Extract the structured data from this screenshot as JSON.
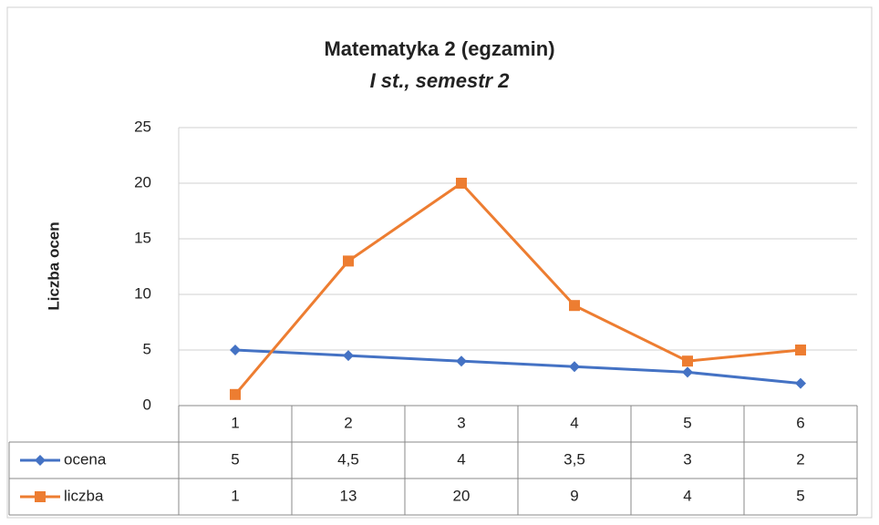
{
  "chart_data": {
    "type": "line",
    "title": "Matematyka 2 (egzamin)",
    "subtitle": "I st., semestr 2",
    "y_label": "Liczba ocen",
    "categories": [
      "1",
      "2",
      "3",
      "4",
      "5",
      "6"
    ],
    "series": [
      {
        "name": "ocena",
        "color": "#4472c4",
        "marker": "diamond",
        "values": [
          5,
          4.5,
          4,
          3.5,
          3,
          2
        ],
        "value_labels": [
          "5",
          "4,5",
          "4",
          "3,5",
          "3",
          "2"
        ]
      },
      {
        "name": "liczba",
        "color": "#ed7d31",
        "marker": "square",
        "values": [
          1,
          13,
          20,
          9,
          4,
          5
        ]
      }
    ],
    "ylim": [
      0,
      25
    ],
    "yticks": [
      0,
      5,
      10,
      15,
      20,
      25
    ],
    "grid": true,
    "data_table": true
  }
}
